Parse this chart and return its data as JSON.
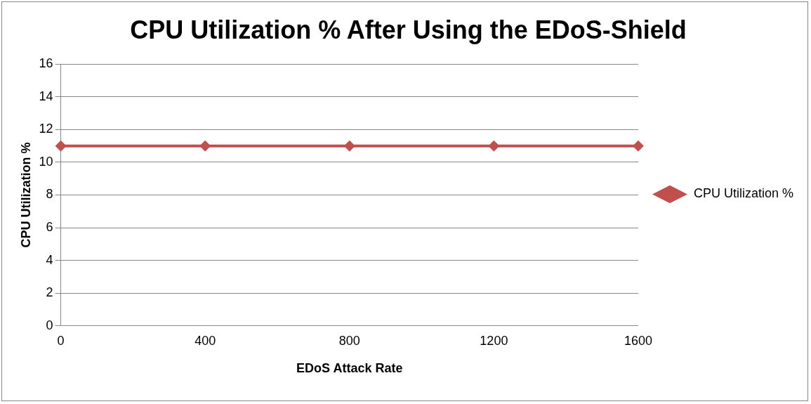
{
  "chart_data": {
    "type": "line",
    "title": "CPU Utilization % After Using the EDoS-Shield",
    "xlabel": "EDoS Attack Rate",
    "ylabel": "CPU Utilization %",
    "categories": [
      "0",
      "400",
      "800",
      "1200",
      "1600"
    ],
    "series": [
      {
        "name": "CPU Utilization %",
        "color": "#c0504d",
        "values": [
          11,
          11,
          11,
          11,
          11
        ]
      }
    ],
    "ylim": [
      0,
      16
    ],
    "yticks": [
      0,
      2,
      4,
      6,
      8,
      10,
      12,
      14,
      16
    ],
    "grid": "y",
    "legend": "right",
    "marker": "diamond",
    "line_style": "solid"
  }
}
